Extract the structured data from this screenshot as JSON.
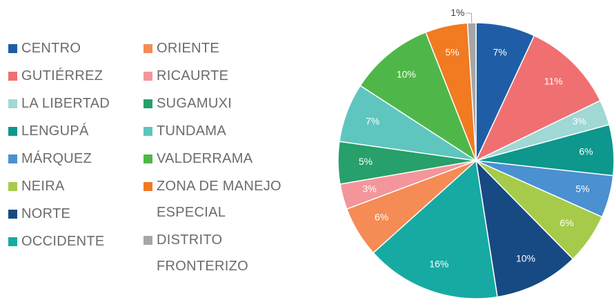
{
  "chart_data": {
    "type": "pie",
    "categories": [
      "CENTRO",
      "GUTIÉRREZ",
      "LA LIBERTAD",
      "LENGUPÁ",
      "MÁRQUEZ",
      "NEIRA",
      "NORTE",
      "OCCIDENTE",
      "ORIENTE",
      "RICAURTE",
      "SUGAMUXI",
      "TUNDAMA",
      "VALDERRAMA",
      "ZONA DE MANEJO ESPECIAL",
      "DISTRITO FRONTERIZO"
    ],
    "values": [
      7,
      11,
      3,
      6,
      5,
      6,
      10,
      16,
      6,
      3,
      5,
      7,
      10,
      5,
      1
    ],
    "value_labels": [
      "7%",
      "11%",
      "3%",
      "6%",
      "5%",
      "6%",
      "10%",
      "16%",
      "6%",
      "3%",
      "5%",
      "7%",
      "10%",
      "5%",
      "1%"
    ],
    "colors": [
      "#1f5ea6",
      "#f07072",
      "#9fd8d5",
      "#0e978c",
      "#4b90d1",
      "#a6cb4b",
      "#174a82",
      "#17aaa2",
      "#f58b55",
      "#f4959b",
      "#27a06b",
      "#5ec6bf",
      "#4fb749",
      "#f27a21",
      "#a6a6a6"
    ],
    "legend": "left"
  }
}
